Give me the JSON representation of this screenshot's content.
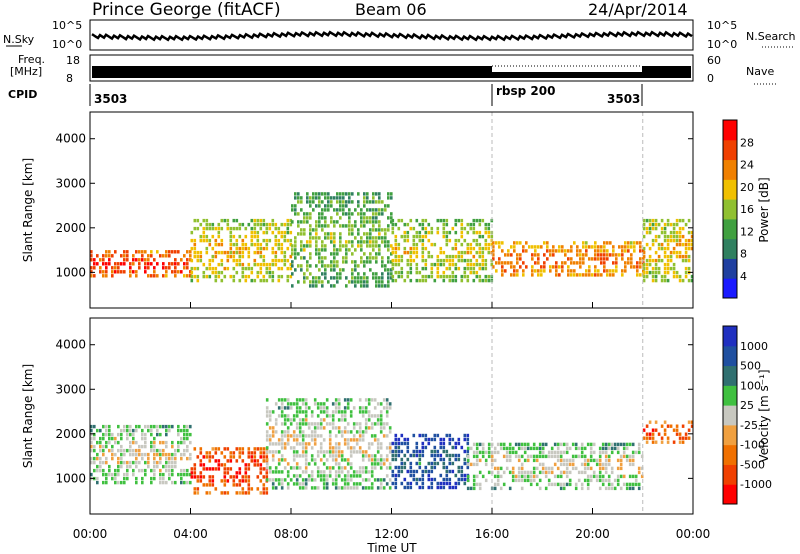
{
  "header": {
    "station": "Prince George (fitACF)",
    "beam": "Beam 06",
    "date": "24/Apr/2014"
  },
  "top_panels": {
    "nsky_label": "N.Sky",
    "nsearch_label": "N.Search",
    "nsky_ticks": [
      "10^5",
      "10^0"
    ],
    "freq_label_1": "Freq.",
    "freq_label_2": "[MHz]",
    "freq_ticks": [
      "18",
      "8"
    ],
    "nave_ticks": [
      "60",
      "0"
    ],
    "nave_label": "Nave",
    "cpid_label": "CPID",
    "cpid_segments": [
      {
        "label": "3503",
        "start_hour": 0
      },
      {
        "label": "rbsp 200",
        "start_hour": 16
      },
      {
        "label": "3503",
        "start_hour": 22
      }
    ]
  },
  "chart_data": [
    {
      "type": "heatmap",
      "name": "power",
      "ylabel": "Slant Range [km]",
      "ylim": [
        200,
        4600
      ],
      "yticks": [
        1000,
        2000,
        3000,
        4000
      ],
      "xlim": [
        0,
        24
      ],
      "colorbar_label": "Power [dB]",
      "colorbar_ticks": [
        "4",
        "8",
        "12",
        "16",
        "20",
        "24",
        "28"
      ],
      "colorbar_colors": [
        "#1a1aff",
        "#2040a0",
        "#308060",
        "#40a040",
        "#90c030",
        "#f0c000",
        "#f08000",
        "#f04000",
        "#ff0000"
      ],
      "bands": [
        {
          "x": [
            0,
            4
          ],
          "y": [
            900,
            1500
          ],
          "level": 0.85
        },
        {
          "x": [
            4,
            8
          ],
          "y": [
            800,
            2200
          ],
          "level": 0.6
        },
        {
          "x": [
            8,
            12
          ],
          "y": [
            700,
            2800
          ],
          "level": 0.45
        },
        {
          "x": [
            12,
            16
          ],
          "y": [
            800,
            2200
          ],
          "level": 0.55
        },
        {
          "x": [
            16,
            22
          ],
          "y": [
            900,
            1700
          ],
          "level": 0.75
        },
        {
          "x": [
            22,
            24
          ],
          "y": [
            800,
            2200
          ],
          "level": 0.6
        }
      ]
    },
    {
      "type": "heatmap",
      "name": "velocity",
      "ylabel": "Slant Range [km]",
      "ylim": [
        200,
        4600
      ],
      "yticks": [
        1000,
        2000,
        3000,
        4000
      ],
      "xlim": [
        0,
        24
      ],
      "colorbar_label": "Velocity [m s⁻¹]",
      "colorbar_ticks": [
        "1000",
        "500",
        "100",
        "25",
        "-25",
        "-100",
        "-500",
        "-1000"
      ],
      "colorbar_colors": [
        "#2030c0",
        "#2050a0",
        "#307070",
        "#40c040",
        "#c8c8c0",
        "#f0a040",
        "#f07000",
        "#f04000",
        "#ff0000"
      ],
      "bands": [
        {
          "x": [
            0,
            4
          ],
          "y": [
            900,
            2200
          ],
          "level": 0.5
        },
        {
          "x": [
            4,
            7
          ],
          "y": [
            700,
            1700
          ],
          "level": 0.85
        },
        {
          "x": [
            7,
            12
          ],
          "y": [
            800,
            2800
          ],
          "level": 0.5
        },
        {
          "x": [
            12,
            15
          ],
          "y": [
            800,
            2000
          ],
          "level": 0.2
        },
        {
          "x": [
            15,
            22
          ],
          "y": [
            800,
            1800
          ],
          "level": 0.5
        },
        {
          "x": [
            22,
            24
          ],
          "y": [
            1800,
            2300
          ],
          "level": 0.8
        }
      ]
    }
  ],
  "xaxis": {
    "ticks": [
      "00:00",
      "04:00",
      "08:00",
      "12:00",
      "16:00",
      "20:00",
      "00:00"
    ],
    "label": "Time UT",
    "markers_hours": [
      16,
      22
    ]
  }
}
